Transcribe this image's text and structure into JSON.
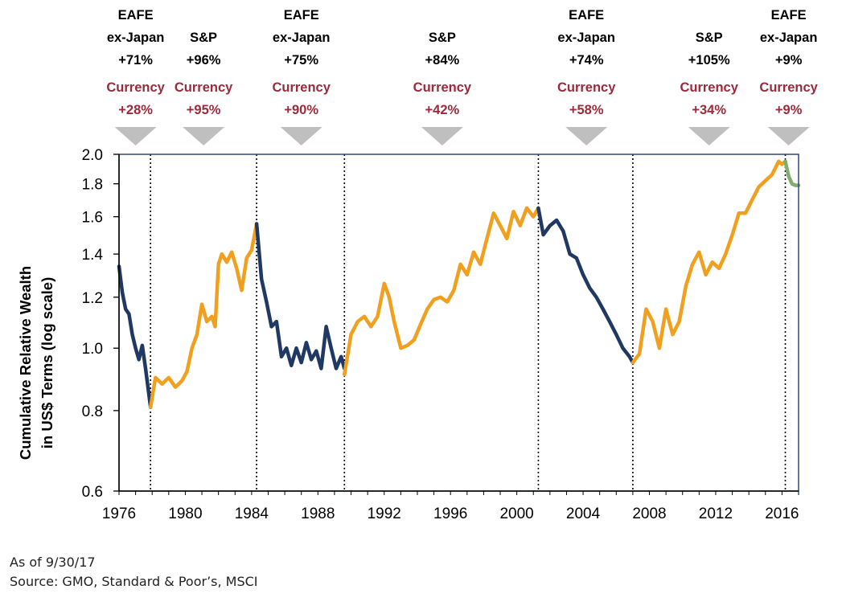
{
  "chart_data": {
    "type": "line",
    "ylabel_lines": [
      "Cumulative Relative Wealth",
      "in US$ Terms (log scale)"
    ],
    "xlabel": "",
    "ylim": [
      0.6,
      2.0
    ],
    "xlim": [
      1976,
      2017
    ],
    "yticks": [
      0.6,
      0.8,
      1.0,
      1.2,
      1.4,
      1.6,
      1.8,
      2.0
    ],
    "ytick_labels": [
      "0.6",
      "0.8",
      "1.0",
      "1.2",
      "1.4",
      "1.6",
      "1.8",
      "2.0"
    ],
    "xticks": [
      1976,
      1980,
      1984,
      1988,
      1992,
      1996,
      2000,
      2004,
      2008,
      2012,
      2016
    ],
    "xtick_labels": [
      "1976",
      "1980",
      "1984",
      "1988",
      "1992",
      "1996",
      "2000",
      "2004",
      "2008",
      "2012",
      "2016"
    ],
    "grid": false,
    "regime_breaks": [
      1977.9,
      1984.3,
      1989.6,
      2001.3,
      2007.0,
      2016.2
    ],
    "colors": {
      "eafe_lead": "#1f3864",
      "sp_lead": "#f0a01e",
      "recent": "#7fae6f",
      "currency_text": "#9b2a3a",
      "arrow": "#bfbfbf",
      "frame": "#2e4a7a"
    },
    "annotations": [
      {
        "x": 1977.0,
        "lines": [
          "EAFE",
          "ex-Japan",
          "+71%"
        ],
        "currency": [
          "Currency",
          "+28%"
        ]
      },
      {
        "x": 1981.1,
        "lines": [
          "S&P",
          "+96%"
        ],
        "currency": [
          "Currency",
          "+95%"
        ]
      },
      {
        "x": 1987.0,
        "lines": [
          "EAFE",
          "ex-Japan",
          "+75%"
        ],
        "currency": [
          "Currency",
          "+90%"
        ]
      },
      {
        "x": 1995.5,
        "lines": [
          "S&P",
          "+84%"
        ],
        "currency": [
          "Currency",
          "+42%"
        ]
      },
      {
        "x": 2004.2,
        "lines": [
          "EAFE",
          "ex-Japan",
          "+74%"
        ],
        "currency": [
          "Currency",
          "+58%"
        ]
      },
      {
        "x": 2011.6,
        "lines": [
          "S&P",
          "+105%"
        ],
        "currency": [
          "Currency",
          "+34%"
        ]
      },
      {
        "x": 2016.4,
        "lines": [
          "EAFE",
          "ex-Japan",
          "+9%"
        ],
        "currency": [
          "Currency",
          "+9%"
        ]
      }
    ],
    "series": [
      {
        "color_key": "eafe_lead",
        "x": [
          1976.0,
          1976.2,
          1976.4,
          1976.6,
          1976.8,
          1977.0,
          1977.2,
          1977.4,
          1977.6,
          1977.9
        ],
        "y": [
          1.34,
          1.22,
          1.15,
          1.13,
          1.05,
          1.0,
          0.96,
          1.01,
          0.93,
          0.81
        ]
      },
      {
        "color_key": "sp_lead",
        "x": [
          1977.9,
          1978.2,
          1978.6,
          1979.0,
          1979.4,
          1979.8,
          1980.1,
          1980.4,
          1980.7,
          1981.0,
          1981.3,
          1981.6,
          1981.8,
          1982.0,
          1982.2,
          1982.5,
          1982.8,
          1983.1,
          1983.4,
          1983.7,
          1984.0,
          1984.3
        ],
        "y": [
          0.81,
          0.9,
          0.88,
          0.9,
          0.87,
          0.89,
          0.92,
          1.0,
          1.05,
          1.17,
          1.1,
          1.12,
          1.08,
          1.35,
          1.4,
          1.36,
          1.41,
          1.33,
          1.23,
          1.38,
          1.42,
          1.56
        ]
      },
      {
        "color_key": "eafe_lead",
        "x": [
          1984.3,
          1984.6,
          1984.9,
          1985.2,
          1985.5,
          1985.8,
          1986.1,
          1986.4,
          1986.7,
          1987.0,
          1987.3,
          1987.6,
          1987.9,
          1988.2,
          1988.5,
          1988.8,
          1989.1,
          1989.4,
          1989.6
        ],
        "y": [
          1.56,
          1.28,
          1.18,
          1.08,
          1.1,
          0.97,
          1.0,
          0.94,
          1.0,
          0.95,
          1.02,
          0.96,
          0.99,
          0.93,
          1.08,
          1.0,
          0.93,
          0.97,
          0.93
        ]
      },
      {
        "color_key": "sp_lead",
        "x": [
          1989.6,
          1990.0,
          1990.4,
          1990.8,
          1991.2,
          1991.6,
          1992.0,
          1992.3,
          1992.6,
          1993.0,
          1993.4,
          1993.8,
          1994.2,
          1994.6,
          1995.0,
          1995.4,
          1995.8,
          1996.2,
          1996.6,
          1997.0,
          1997.4,
          1997.8,
          1998.2,
          1998.6,
          1999.0,
          1999.4,
          1999.8,
          2000.2,
          2000.6,
          2001.0,
          2001.3
        ],
        "y": [
          0.91,
          1.05,
          1.1,
          1.12,
          1.08,
          1.12,
          1.26,
          1.2,
          1.1,
          1.0,
          1.01,
          1.03,
          1.09,
          1.15,
          1.19,
          1.2,
          1.18,
          1.23,
          1.35,
          1.3,
          1.41,
          1.35,
          1.48,
          1.62,
          1.55,
          1.48,
          1.63,
          1.55,
          1.65,
          1.6,
          1.65
        ]
      },
      {
        "color_key": "eafe_lead",
        "x": [
          2001.3,
          2001.6,
          2002.0,
          2002.4,
          2002.8,
          2003.2,
          2003.6,
          2004.0,
          2004.4,
          2004.8,
          2005.2,
          2005.6,
          2006.0,
          2006.4,
          2006.8,
          2007.0
        ],
        "y": [
          1.65,
          1.5,
          1.55,
          1.58,
          1.52,
          1.4,
          1.38,
          1.3,
          1.24,
          1.2,
          1.15,
          1.1,
          1.05,
          1.0,
          0.97,
          0.95
        ]
      },
      {
        "color_key": "sp_lead",
        "x": [
          2007.0,
          2007.4,
          2007.8,
          2008.2,
          2008.6,
          2009.0,
          2009.4,
          2009.8,
          2010.2,
          2010.6,
          2011.0,
          2011.4,
          2011.8,
          2012.2,
          2012.6,
          2013.0,
          2013.4,
          2013.8,
          2014.2,
          2014.6,
          2015.0,
          2015.4,
          2015.8,
          2016.0,
          2016.2
        ],
        "y": [
          0.95,
          0.98,
          1.15,
          1.1,
          1.0,
          1.15,
          1.05,
          1.1,
          1.25,
          1.35,
          1.41,
          1.3,
          1.36,
          1.33,
          1.4,
          1.5,
          1.62,
          1.62,
          1.7,
          1.78,
          1.82,
          1.86,
          1.95,
          1.93,
          1.95
        ]
      },
      {
        "color_key": "recent",
        "x": [
          2016.2,
          2016.4,
          2016.6,
          2016.8,
          2017.0
        ],
        "y": [
          1.95,
          1.85,
          1.8,
          1.79,
          1.79
        ]
      }
    ]
  },
  "footer": {
    "as_of": "As of 9/30/17",
    "source": "Source: GMO, Standard & Poor’s, MSCI"
  }
}
